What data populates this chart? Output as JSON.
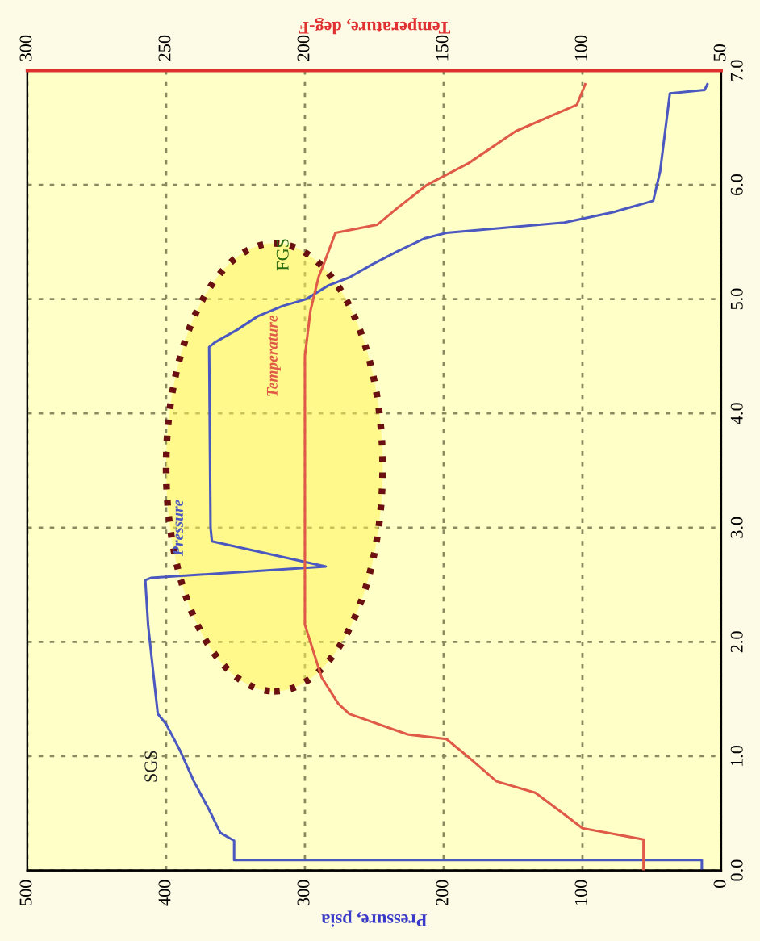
{
  "chart_data": {
    "type": "line",
    "xlabel": "Pressure, psia",
    "xlim": [
      500,
      0
    ],
    "xticks": [
      0,
      100,
      200,
      300,
      400,
      500
    ],
    "x2label": "Temperature, deg-F",
    "x2lim": [
      300,
      50
    ],
    "x2ticks": [
      50,
      100,
      150,
      200,
      250,
      300
    ],
    "ylim": [
      0,
      7
    ],
    "yticks": [
      {
        "value": 0,
        "label": "0.0"
      },
      {
        "value": 1,
        "label": "1.0"
      },
      {
        "value": 2,
        "label": "2.0"
      },
      {
        "value": 3,
        "label": "3.0"
      },
      {
        "value": 4,
        "label": "4.0"
      },
      {
        "value": 5,
        "label": "5.0"
      },
      {
        "value": 6,
        "label": "6.0"
      },
      {
        "value": 7,
        "label": "7.0"
      }
    ],
    "grid": true,
    "series": [
      {
        "name": "Pressure",
        "color": "#4a58c0",
        "x": [
          14,
          14,
          351,
          351,
          361,
          369,
          380,
          390,
          400,
          406,
          409,
          413,
          415,
          411,
          285,
          367,
          368,
          369,
          365,
          349,
          334,
          316,
          299,
          283,
          268,
          252,
          233,
          214,
          198,
          113,
          78,
          49,
          44,
          37,
          12,
          10
        ],
        "values": [
          0,
          0.09,
          0.09,
          0.26,
          0.33,
          0.53,
          0.78,
          1.05,
          1.28,
          1.37,
          1.7,
          2.15,
          2.54,
          2.56,
          2.66,
          2.88,
          3.0,
          4.58,
          4.62,
          4.73,
          4.85,
          4.94,
          5.0,
          5.12,
          5.19,
          5.3,
          5.42,
          5.53,
          5.58,
          5.67,
          5.76,
          5.86,
          6.12,
          6.8,
          6.83,
          6.88
        ]
      },
      {
        "name": "Temperature",
        "color": "#e05a48",
        "axis": "x2",
        "x": [
          78,
          78,
          100,
          106,
          117,
          131,
          141,
          149,
          163,
          184,
          188,
          194,
          200,
          200,
          198,
          195,
          193,
          189,
          174,
          166,
          156,
          141,
          124,
          102,
          99
        ],
        "values": [
          0,
          0.27,
          0.37,
          0.48,
          0.68,
          0.78,
          0.99,
          1.15,
          1.19,
          1.37,
          1.46,
          1.69,
          2.15,
          4.5,
          4.9,
          5.2,
          5.32,
          5.58,
          5.65,
          5.81,
          6.0,
          6.19,
          6.47,
          6.7,
          6.88
        ]
      }
    ],
    "annotations": [
      "SGS",
      "FGS"
    ]
  }
}
